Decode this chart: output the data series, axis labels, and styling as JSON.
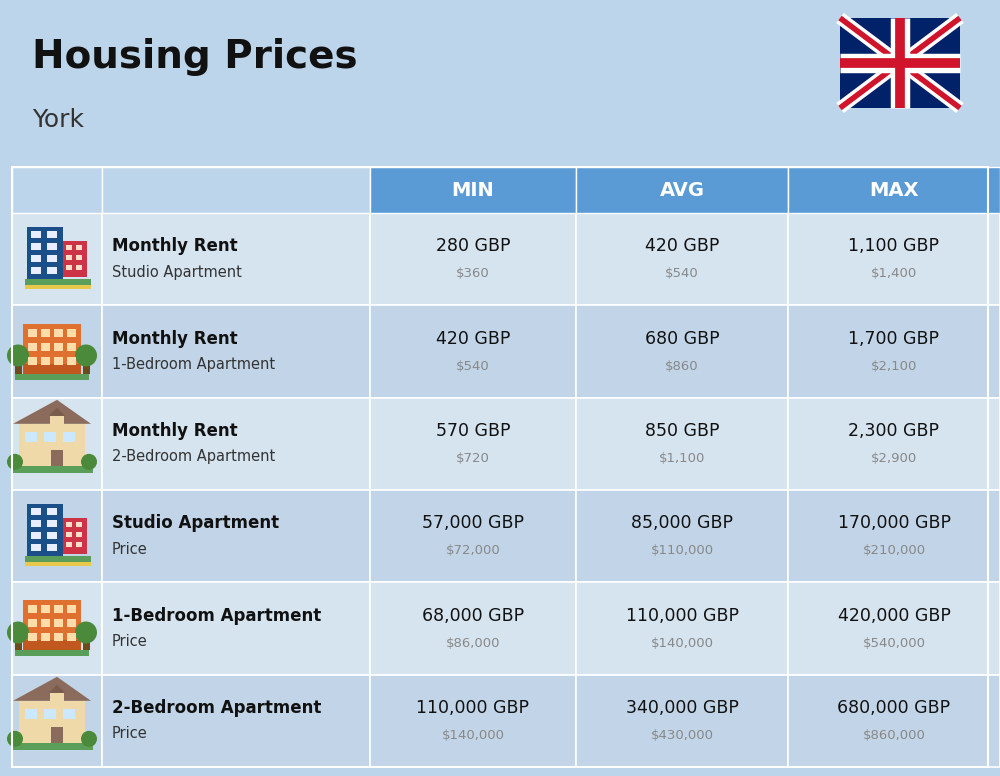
{
  "title": "Housing Prices",
  "subtitle": "York",
  "background_color": "#bdd5ea",
  "header_bg_color": "#5b9bd5",
  "row_bg_light": "#d6e4f0",
  "row_bg_dark": "#c2d5e8",
  "columns": [
    "MIN",
    "AVG",
    "MAX"
  ],
  "rows": [
    {
      "bold_label": "Monthly Rent",
      "sub_label": "Studio Apartment",
      "min_gbp": "280 GBP",
      "min_usd": "$360",
      "avg_gbp": "420 GBP",
      "avg_usd": "$540",
      "max_gbp": "1,100 GBP",
      "max_usd": "$1,400",
      "icon_type": "blue_red"
    },
    {
      "bold_label": "Monthly Rent",
      "sub_label": "1-Bedroom Apartment",
      "min_gbp": "420 GBP",
      "min_usd": "$540",
      "avg_gbp": "680 GBP",
      "avg_usd": "$860",
      "max_gbp": "1,700 GBP",
      "max_usd": "$2,100",
      "icon_type": "orange"
    },
    {
      "bold_label": "Monthly Rent",
      "sub_label": "2-Bedroom Apartment",
      "min_gbp": "570 GBP",
      "min_usd": "$720",
      "avg_gbp": "850 GBP",
      "avg_usd": "$1,100",
      "max_gbp": "2,300 GBP",
      "max_usd": "$2,900",
      "icon_type": "tan_house"
    },
    {
      "bold_label": "Studio Apartment",
      "sub_label": "Price",
      "min_gbp": "57,000 GBP",
      "min_usd": "$72,000",
      "avg_gbp": "85,000 GBP",
      "avg_usd": "$110,000",
      "max_gbp": "170,000 GBP",
      "max_usd": "$210,000",
      "icon_type": "blue_red"
    },
    {
      "bold_label": "1-Bedroom Apartment",
      "sub_label": "Price",
      "min_gbp": "68,000 GBP",
      "min_usd": "$86,000",
      "avg_gbp": "110,000 GBP",
      "avg_usd": "$140,000",
      "max_gbp": "420,000 GBP",
      "max_usd": "$540,000",
      "icon_type": "orange"
    },
    {
      "bold_label": "2-Bedroom Apartment",
      "sub_label": "Price",
      "min_gbp": "110,000 GBP",
      "min_usd": "$140,000",
      "avg_gbp": "340,000 GBP",
      "avg_usd": "$430,000",
      "max_gbp": "680,000 GBP",
      "max_usd": "$860,000",
      "icon_type": "tan_house"
    }
  ]
}
